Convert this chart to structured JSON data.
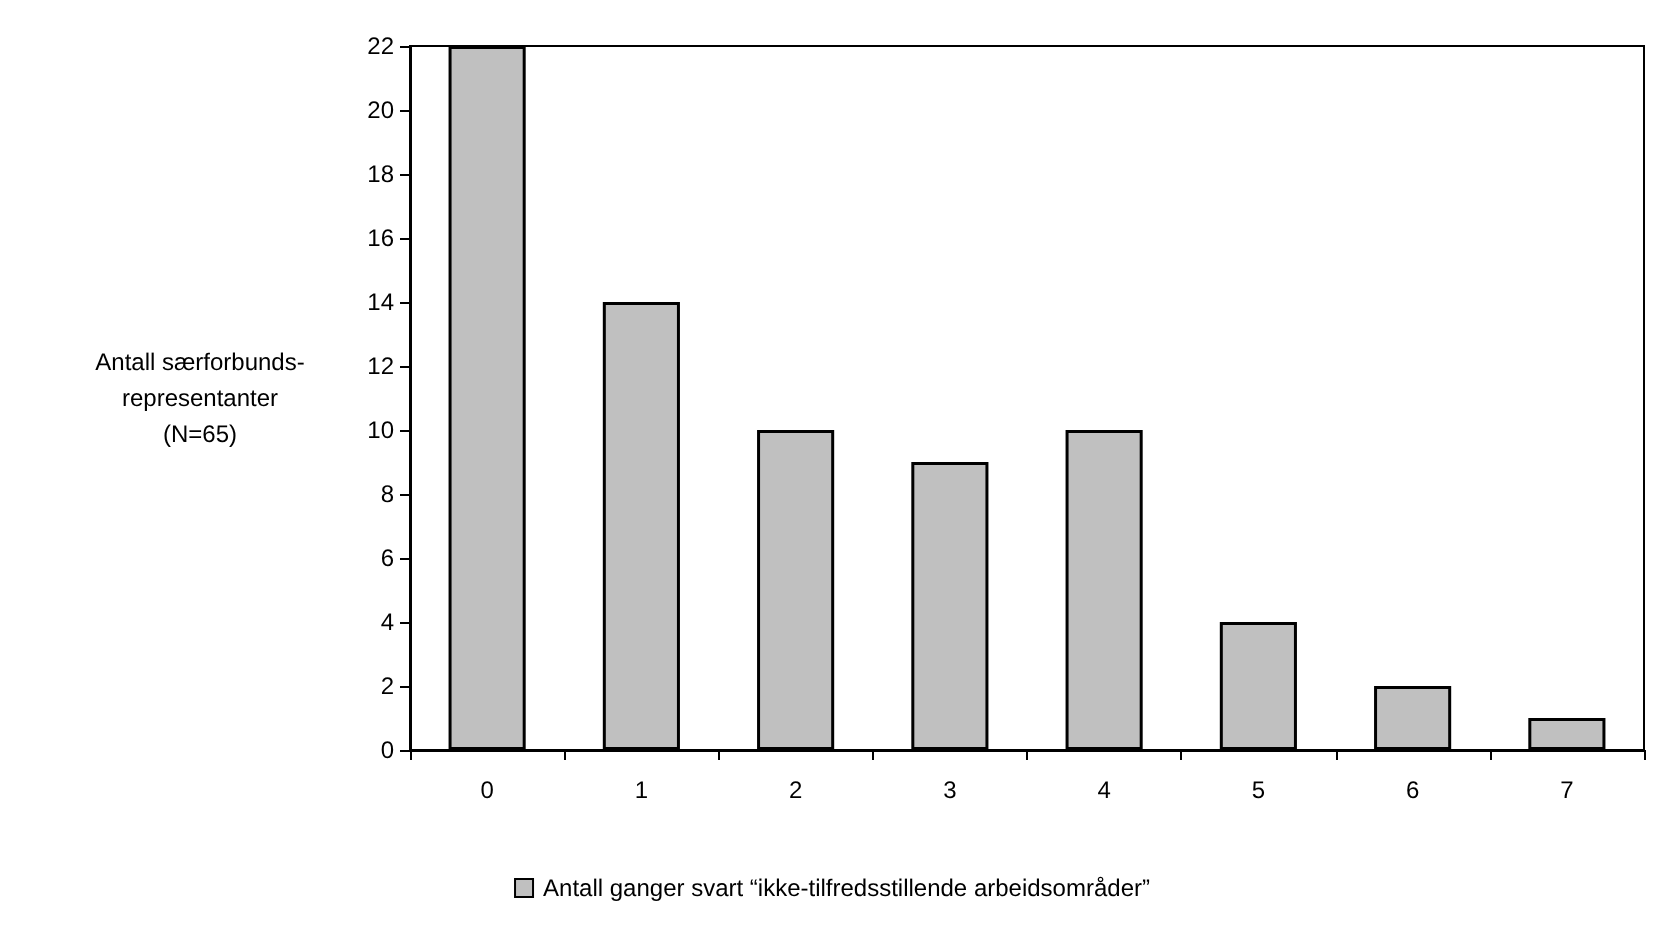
{
  "chart_data": {
    "type": "bar",
    "ylabel": "Antall særforbunds-\nrepresentanter\n(N=65)",
    "categories": [
      "0",
      "1",
      "2",
      "3",
      "4",
      "5",
      "6",
      "7"
    ],
    "series": [
      {
        "name": "Antall ganger svart “ikke-tilfredsstillende arbeidsområder”",
        "color": "#c0c0c0",
        "values": [
          22,
          14,
          10,
          9,
          10,
          4,
          2,
          1
        ]
      }
    ],
    "ylim": [
      0,
      22
    ],
    "yticks": [
      0,
      2,
      4,
      6,
      8,
      10,
      12,
      14,
      16,
      18,
      20,
      22
    ],
    "grid": false,
    "legend": "bottom"
  }
}
